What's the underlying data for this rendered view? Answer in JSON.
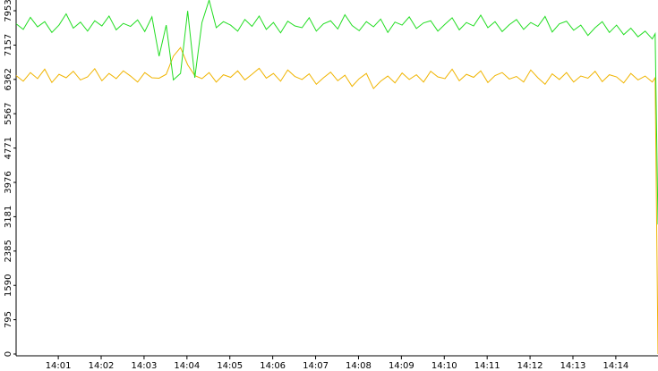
{
  "chart_data": {
    "type": "line",
    "x": [
      1,
      11,
      21,
      31,
      41,
      51,
      61,
      71,
      81,
      91,
      101,
      111,
      121,
      131,
      141,
      151,
      161,
      171,
      181,
      191,
      201,
      211,
      221,
      231,
      241,
      251,
      261,
      271,
      281,
      291,
      301,
      311,
      321,
      331,
      341,
      351,
      361,
      371,
      381,
      391,
      401,
      411,
      421,
      431,
      441,
      451,
      461,
      471,
      481,
      491,
      501,
      511,
      521,
      531,
      541,
      551,
      561,
      571,
      581,
      591,
      601,
      611,
      621,
      631,
      641,
      651,
      661,
      671,
      681,
      691,
      701,
      711,
      721,
      731,
      741,
      751,
      761,
      771,
      781,
      791,
      801,
      811,
      821,
      831,
      841,
      851,
      861,
      871,
      881,
      891,
      895,
      899
    ],
    "series": [
      {
        "color": "#22dd22",
        "values": [
          7650,
          7520,
          7800,
          7580,
          7700,
          7450,
          7620,
          7880,
          7550,
          7690,
          7480,
          7720,
          7600,
          7830,
          7510,
          7660,
          7590,
          7740,
          7470,
          7810,
          6900,
          7620,
          6350,
          6500,
          7950,
          6400,
          7680,
          8200,
          7560,
          7700,
          7620,
          7480,
          7750,
          7590,
          7830,
          7520,
          7680,
          7440,
          7710,
          7600,
          7560,
          7790,
          7480,
          7650,
          7720,
          7530,
          7860,
          7610,
          7490,
          7700,
          7580,
          7760,
          7450,
          7690,
          7620,
          7810,
          7540,
          7670,
          7720,
          7480,
          7640,
          7790,
          7510,
          7680,
          7600,
          7850,
          7560,
          7700,
          7470,
          7630,
          7750,
          7520,
          7680,
          7590,
          7820,
          7460,
          7650,
          7710,
          7500,
          7620,
          7380,
          7560,
          7700,
          7450,
          7620,
          7400,
          7550,
          7350,
          7480,
          7300,
          7420,
          3000
        ]
      },
      {
        "color": "#f0b400",
        "values": [
          6450,
          6320,
          6520,
          6380,
          6600,
          6290,
          6480,
          6400,
          6550,
          6350,
          6420,
          6610,
          6330,
          6500,
          6380,
          6560,
          6440,
          6300,
          6520,
          6400,
          6390,
          6480,
          6900,
          7100,
          6700,
          6450,
          6380,
          6520,
          6300,
          6470,
          6410,
          6560,
          6350,
          6480,
          6620,
          6390,
          6500,
          6320,
          6580,
          6430,
          6360,
          6490,
          6250,
          6400,
          6530,
          6330,
          6460,
          6200,
          6380,
          6500,
          6150,
          6320,
          6440,
          6280,
          6510,
          6360,
          6470,
          6300,
          6550,
          6420,
          6380,
          6600,
          6330,
          6480,
          6410,
          6560,
          6290,
          6450,
          6520,
          6370,
          6430,
          6300,
          6580,
          6400,
          6250,
          6490,
          6360,
          6520,
          6300,
          6440,
          6390,
          6550,
          6310,
          6470,
          6420,
          6280,
          6500,
          6350,
          6440,
          6300,
          6400,
          0
        ]
      }
    ],
    "xlim": [
      1,
      899
    ],
    "xticks": [
      {
        "value": 60,
        "label": "14:01"
      },
      {
        "value": 120,
        "label": "14:02"
      },
      {
        "value": 180,
        "label": "14:03"
      },
      {
        "value": 240,
        "label": "14:04"
      },
      {
        "value": 300,
        "label": "14:05"
      },
      {
        "value": 360,
        "label": "14:06"
      },
      {
        "value": 420,
        "label": "14:07"
      },
      {
        "value": 480,
        "label": "14:08"
      },
      {
        "value": 540,
        "label": "14:09"
      },
      {
        "value": 600,
        "label": "14:10"
      },
      {
        "value": 660,
        "label": "14:11"
      },
      {
        "value": 720,
        "label": "14:12"
      },
      {
        "value": 780,
        "label": "14:13"
      },
      {
        "value": 840,
        "label": "14:14"
      }
    ],
    "ylim": [
      0,
      7953
    ],
    "yticks": [
      0,
      795,
      1590,
      2385,
      3181,
      3976,
      4771,
      5567,
      6362,
      7157,
      7953
    ]
  }
}
